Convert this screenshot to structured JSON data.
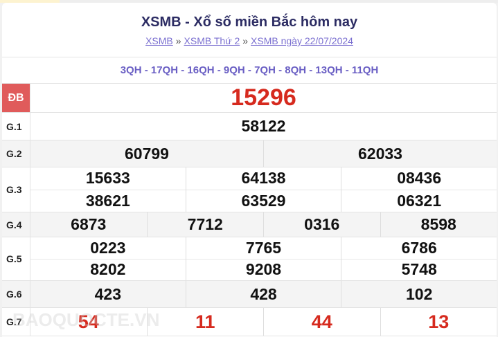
{
  "header": {
    "title": "XSMB - Xổ số miền Bắc hôm nay",
    "breadcrumb": [
      {
        "label": "XSMB"
      },
      {
        "label": "XSMB Thứ 2"
      },
      {
        "label": "XSMB ngày 22/07/2024"
      }
    ],
    "separator": "»"
  },
  "codes": "3QH - 17QH - 16QH - 9QH - 7QH - 8QH - 13QH - 11QH",
  "prizes": {
    "db": {
      "label": "ĐB",
      "values": [
        "15296"
      ]
    },
    "g1": {
      "label": "G.1",
      "values": [
        "58122"
      ]
    },
    "g2": {
      "label": "G.2",
      "values": [
        "60799",
        "62033"
      ]
    },
    "g3": {
      "label": "G.3",
      "values": [
        "15633",
        "64138",
        "08436",
        "38621",
        "63529",
        "06321"
      ]
    },
    "g4": {
      "label": "G.4",
      "values": [
        "6873",
        "7712",
        "0316",
        "8598"
      ]
    },
    "g5": {
      "label": "G.5",
      "values": [
        "0223",
        "7765",
        "6786",
        "8202",
        "9208",
        "5748"
      ]
    },
    "g6": {
      "label": "G.6",
      "values": [
        "423",
        "428",
        "102"
      ]
    },
    "g7": {
      "label": "G.7",
      "values": [
        "54",
        "11",
        "44",
        "13"
      ]
    }
  },
  "watermark": "BAOQUOCTE.VN",
  "colors": {
    "special": "#d62a1e",
    "db_label_bg": "#e05b5b",
    "title": "#2c2c63",
    "link": "#7a6fd0"
  }
}
